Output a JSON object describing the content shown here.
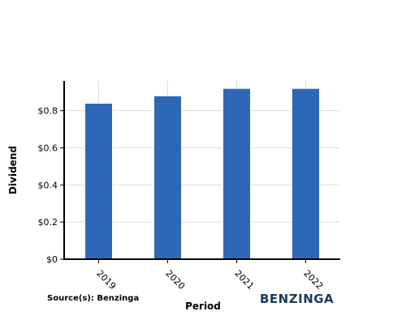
{
  "chart_data": {
    "type": "bar",
    "categories": [
      "2019",
      "2020",
      "2021",
      "2022"
    ],
    "values": [
      0.84,
      0.88,
      0.92,
      0.92
    ],
    "title": "",
    "xlabel": "Period",
    "ylabel": "Dividend",
    "ylim": [
      0,
      0.96
    ],
    "yticks": [
      0,
      0.2,
      0.4,
      0.6,
      0.8
    ],
    "ytick_labels": [
      "$0",
      "$0.2",
      "$0.4",
      "$0.6",
      "$0.8"
    ],
    "grid": true,
    "bar_color": "#2e67b8"
  },
  "source": "Source(s): Benzinga",
  "brand": "BENZINGA"
}
